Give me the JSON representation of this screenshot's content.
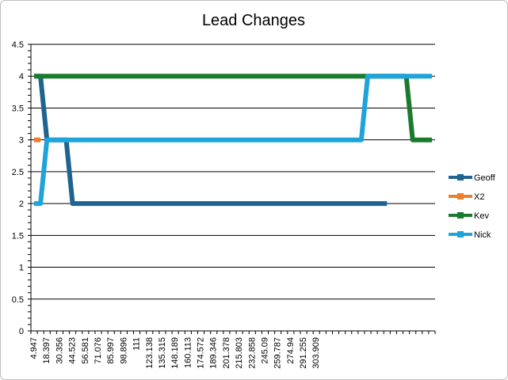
{
  "chart_data": {
    "type": "line",
    "title": "Lead Changes",
    "xlabel": "",
    "ylabel": "",
    "ylim": [
      0,
      4.5
    ],
    "y_ticks": [
      "0",
      "0.5",
      "1",
      "1.5",
      "2",
      "2.5",
      "3",
      "3.5",
      "4",
      "4.5"
    ],
    "x_tick_labels": [
      "4.947",
      "18.397",
      "30.356",
      "44.523",
      "56.581",
      "71.076",
      "85.997",
      "98.896",
      "111",
      "123.138",
      "135.315",
      "148.189",
      "160.113",
      "174.572",
      "189.346",
      "201.378",
      "215.803",
      "232.858",
      "245.09",
      "259.787",
      "274.94",
      "291.255",
      "303.909"
    ],
    "grid": "horizontal",
    "legend": "right",
    "series": [
      {
        "name": "Geoff",
        "color": "#1F6391",
        "points": [
          [
            0,
            4
          ],
          [
            1,
            4
          ],
          [
            2,
            3
          ],
          [
            5,
            3
          ],
          [
            6,
            2
          ],
          [
            55,
            2
          ]
        ]
      },
      {
        "name": "X2",
        "color": "#ED7D31",
        "points": [
          [
            0,
            3
          ],
          [
            1,
            3
          ]
        ]
      },
      {
        "name": "Kev",
        "color": "#1A7A2E",
        "points": [
          [
            0,
            4
          ],
          [
            51,
            4
          ],
          [
            58,
            4
          ],
          [
            59,
            3
          ],
          [
            62,
            3
          ]
        ]
      },
      {
        "name": "Nick",
        "color": "#1FA3DB",
        "points": [
          [
            0,
            2
          ],
          [
            1,
            2
          ],
          [
            2,
            3
          ],
          [
            51,
            3
          ],
          [
            52,
            4
          ],
          [
            62,
            4
          ]
        ]
      }
    ]
  }
}
